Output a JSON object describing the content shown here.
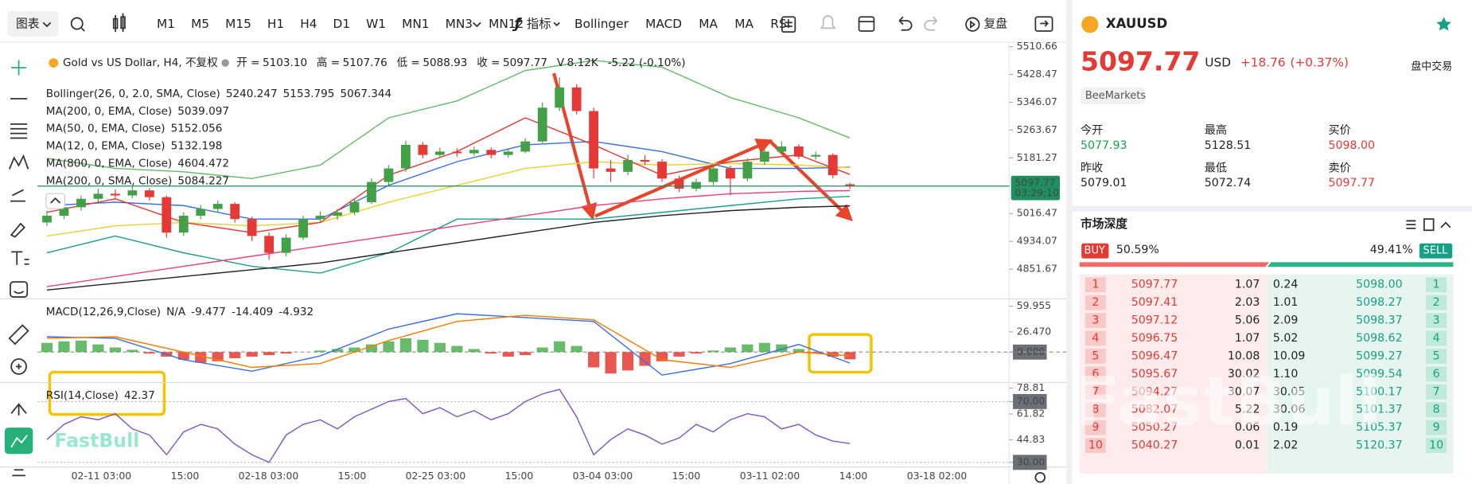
{
  "toolbar": {
    "chart_menu": "图表",
    "timeframes": [
      "M1",
      "M5",
      "M15",
      "H1",
      "H4",
      "D1",
      "W1",
      "MN1",
      "MN3",
      "MN12"
    ],
    "active_index": 4,
    "indicators_btn": "指标",
    "indicators": [
      "Bollinger",
      "MACD",
      "MA",
      "MA",
      "RSI"
    ],
    "replay": "复盘"
  },
  "chart": {
    "type": "candlestick",
    "title": "Gold vs US Dollar, H4, 不复权",
    "ohlc": [
      {
        "label": "开 =",
        "value": "5103.10"
      },
      {
        "label": "高 =",
        "value": "5107.76"
      },
      {
        "label": "低 =",
        "value": "5088.93"
      },
      {
        "label": "收 =",
        "value": "5097.77"
      }
    ],
    "volume": {
      "label": "V",
      "value": "8.12K"
    },
    "change": "-5.22 (-0.10%)",
    "up_color": "#43a047",
    "down_color": "#e53935",
    "candles": [
      [
        4990,
        5025,
        4980,
        5010
      ],
      [
        5010,
        5045,
        5000,
        5035
      ],
      [
        5035,
        5070,
        5025,
        5060
      ],
      [
        5060,
        5090,
        5050,
        5075
      ],
      [
        5075,
        5088,
        5060,
        5070
      ],
      [
        5070,
        5098,
        5062,
        5085
      ],
      [
        5085,
        5092,
        5055,
        5065
      ],
      [
        5065,
        5070,
        4945,
        4960
      ],
      [
        4960,
        5020,
        4950,
        5010
      ],
      [
        5010,
        5042,
        5000,
        5030
      ],
      [
        5030,
        5055,
        5020,
        5045
      ],
      [
        5045,
        5050,
        4990,
        5000
      ],
      [
        5000,
        5008,
        4935,
        4950
      ],
      [
        4950,
        4960,
        4880,
        4900
      ],
      [
        4900,
        4955,
        4890,
        4945
      ],
      [
        4945,
        5010,
        4938,
        5000
      ],
      [
        5000,
        5022,
        4990,
        5010
      ],
      [
        5010,
        5030,
        4998,
        5020
      ],
      [
        5020,
        5060,
        5012,
        5050
      ],
      [
        5050,
        5120,
        5045,
        5110
      ],
      [
        5110,
        5160,
        5100,
        5150
      ],
      [
        5150,
        5232,
        5140,
        5220
      ],
      [
        5220,
        5228,
        5180,
        5190
      ],
      [
        5190,
        5212,
        5182,
        5200
      ],
      [
        5200,
        5210,
        5185,
        5195
      ],
      [
        5195,
        5215,
        5188,
        5205
      ],
      [
        5205,
        5212,
        5180,
        5190
      ],
      [
        5190,
        5210,
        5182,
        5200
      ],
      [
        5200,
        5240,
        5195,
        5230
      ],
      [
        5230,
        5345,
        5225,
        5330
      ],
      [
        5330,
        5420,
        5320,
        5390
      ],
      [
        5390,
        5400,
        5310,
        5320
      ],
      [
        5320,
        5330,
        5120,
        5150
      ],
      [
        5150,
        5175,
        5110,
        5140
      ],
      [
        5140,
        5190,
        5130,
        5175
      ],
      [
        5175,
        5190,
        5160,
        5170
      ],
      [
        5170,
        5178,
        5110,
        5120
      ],
      [
        5120,
        5128,
        5080,
        5090
      ],
      [
        5090,
        5120,
        5082,
        5110
      ],
      [
        5110,
        5160,
        5100,
        5150
      ],
      [
        5150,
        5158,
        5070,
        5120
      ],
      [
        5120,
        5180,
        5112,
        5170
      ],
      [
        5170,
        5210,
        5160,
        5200
      ],
      [
        5200,
        5230,
        5190,
        5215
      ],
      [
        5215,
        5222,
        5178,
        5185
      ],
      [
        5185,
        5200,
        5176,
        5190
      ],
      [
        5190,
        5195,
        5120,
        5130
      ],
      [
        5103.1,
        5107.76,
        5088.93,
        5097.77
      ]
    ],
    "ylim": [
      4763.7,
      5523.7
    ],
    "yticks": [
      4851.67,
      4934.07,
      5016.47,
      5181.27,
      5263.67,
      5346.07,
      5428.47,
      5510.66
    ],
    "last_price": 5097.77,
    "countdown": "03:29:10",
    "line_x": [
      0,
      4,
      8,
      12,
      16,
      20,
      24,
      28,
      32,
      36,
      40,
      44,
      47
    ],
    "overlays": [
      {
        "name": "Bollinger(26, 0, 2.0, SMA, Close)",
        "lines": [
          {
            "color": "#66bb6a",
            "values": [
              5180,
              5150,
              5140,
              5120,
              5160,
              5300,
              5350,
              5440,
              5470,
              5450,
              5360,
              5300,
              5240.247
            ]
          },
          {
            "color": "#3b6fe0",
            "values": [
              5040,
              5050,
              5040,
              5000,
              5000,
              5100,
              5170,
              5220,
              5230,
              5200,
              5150,
              5150,
              5153.795
            ]
          },
          {
            "color": "#1e9e8a",
            "values": [
              4900,
              4950,
              4900,
              4860,
              4840,
              4900,
              5000,
              5000,
              5000,
              5020,
              5040,
              5060,
              5067.344
            ]
          }
        ]
      },
      {
        "name": "MA(200, 0, EMA, Close)",
        "lines": [
          {
            "color": "#222222",
            "values": [
              4790,
              4810,
              4830,
              4850,
              4870,
              4900,
              4930,
              4960,
              4990,
              5010,
              5025,
              5035,
              5039.097
            ]
          }
        ]
      },
      {
        "name": "MA(50, 0, EMA, Close)",
        "lines": [
          {
            "color": "#e6d22e",
            "values": [
              4950,
              4980,
              4990,
              4980,
              4990,
              5050,
              5100,
              5150,
              5170,
              5160,
              5165,
              5160,
              5152.056
            ]
          }
        ]
      },
      {
        "name": "MA(12, 0, EMA, Close)",
        "lines": [
          {
            "color": "#e53935",
            "values": [
              5020,
              5060,
              4990,
              4960,
              4990,
              5130,
              5200,
              5300,
              5220,
              5130,
              5170,
              5190,
              5132.198
            ]
          }
        ]
      },
      {
        "name": "MA(800, 0, EMA, Close)",
        "lines": [
          {
            "color": "#f39c12",
            "value": 4604.472
          }
        ]
      },
      {
        "name": "MA(200, 0, SMA, Close)",
        "lines": [
          {
            "color": "#ec407a",
            "values": [
              4800,
              4830,
              4860,
              4890,
              4920,
              4950,
              4980,
              5010,
              5040,
              5060,
              5075,
              5082,
              5084.227
            ]
          }
        ]
      }
    ],
    "macd": {
      "name": "MACD(12,26,9,Close)",
      "status": "N/A",
      "hist": [
        12,
        14,
        15,
        10,
        6,
        3,
        -2,
        -6,
        -10,
        -14,
        -12,
        -8,
        -6,
        -4,
        -2,
        0,
        2,
        4,
        6,
        10,
        14,
        18,
        16,
        12,
        8,
        4,
        -2,
        -6,
        -4,
        6,
        14,
        8,
        -20,
        -28,
        -24,
        -18,
        -12,
        -6,
        -2,
        2,
        6,
        10,
        12,
        10,
        4,
        -2,
        -6,
        -9.477
      ],
      "macd_line": [
        20,
        18,
        -10,
        -25,
        -5,
        30,
        50,
        45,
        40,
        -30,
        -15,
        10,
        -14.409
      ],
      "signal": [
        18,
        20,
        0,
        -20,
        -15,
        15,
        40,
        48,
        42,
        -10,
        -20,
        0,
        -4.932
      ],
      "hist_up": "#4caf50",
      "hist_down": "#e53935",
      "macd_color": "#3b6fe0",
      "signal_color": "#f57c00",
      "ylim": [
        -38.5,
        67
      ],
      "yticks": [
        {
          "value": 0,
          "label": "0.000",
          "boxed": true
        },
        {
          "value": 26.47,
          "label": "26.470"
        },
        59.955
      ]
    },
    "rsi": {
      "name": "RSI(14,Close)",
      "color": "#7e57c2",
      "values": [
        45,
        55,
        60,
        58,
        62,
        52,
        48,
        35,
        50,
        55,
        52,
        42,
        35,
        30,
        48,
        55,
        58,
        52,
        60,
        65,
        70,
        72,
        62,
        66,
        60,
        64,
        58,
        62,
        70,
        75,
        78,
        60,
        35,
        45,
        52,
        48,
        42,
        46,
        55,
        50,
        58,
        62,
        60,
        52,
        55,
        48,
        44,
        42.37
      ],
      "ylim": [
        26.9,
        81.9
      ],
      "yticks": [
        {
          "value": 30,
          "label": "30.00",
          "boxed": true
        },
        44.83,
        61.82,
        {
          "value": 70,
          "label": "70.00",
          "boxed": true
        },
        78.81
      ]
    },
    "time_labels": [
      "02-11 03:00",
      "15:00",
      "02-18 03:00",
      "15:00",
      "02-25 03:00",
      "15:00",
      "03-04 03:00",
      "15:00",
      "03-11 02:00",
      "14:00",
      "03-18 02:00"
    ],
    "watermark": "FastBull"
  },
  "panel": {
    "symbol": "XAUUSD",
    "price": "5097.77",
    "currency": "USD",
    "change": "+18.76",
    "change_pct": "(+0.37%)",
    "session": "盘中交易",
    "broker": "BeeMarkets",
    "stats": [
      {
        "label": "今开",
        "value": "5077.93",
        "color": "#16a34a"
      },
      {
        "label": "最高",
        "value": "5128.51",
        "color": "#222"
      },
      {
        "label": "买价",
        "value": "5098.00",
        "color": "#e53935"
      },
      {
        "label": "昨收",
        "value": "5079.01",
        "color": "#222"
      },
      {
        "label": "最低",
        "value": "5072.74",
        "color": "#222"
      },
      {
        "label": "卖价",
        "value": "5097.77",
        "color": "#e53935"
      }
    ],
    "depth": {
      "title": "市场深度",
      "buy": {
        "label": "BUY",
        "pct": "50.59%"
      },
      "sell": {
        "label": "SELL",
        "pct": "49.41%"
      },
      "rows": [
        [
          "1",
          "5097.77",
          "1.07",
          "0.24",
          "5098.00",
          "1"
        ],
        [
          "2",
          "5097.41",
          "2.03",
          "1.01",
          "5098.27",
          "2"
        ],
        [
          "3",
          "5097.12",
          "5.06",
          "2.09",
          "5098.37",
          "3"
        ],
        [
          "4",
          "5096.75",
          "1.07",
          "5.02",
          "5098.62",
          "4"
        ],
        [
          "5",
          "5096.47",
          "10.08",
          "10.09",
          "5099.27",
          "5"
        ],
        [
          "6",
          "5095.67",
          "30.02",
          "1.10",
          "5099.54",
          "6"
        ],
        [
          "7",
          "5094.27",
          "30.07",
          "30.05",
          "5100.17",
          "7"
        ],
        [
          "8",
          "5082.07",
          "5.22",
          "30.06",
          "5101.37",
          "8"
        ],
        [
          "9",
          "5050.27",
          "0.06",
          "0.19",
          "5105.37",
          "9"
        ],
        [
          "10",
          "5040.27",
          "0.01",
          "2.02",
          "5120.37",
          "10"
        ]
      ]
    },
    "watermark": "FastBull"
  }
}
